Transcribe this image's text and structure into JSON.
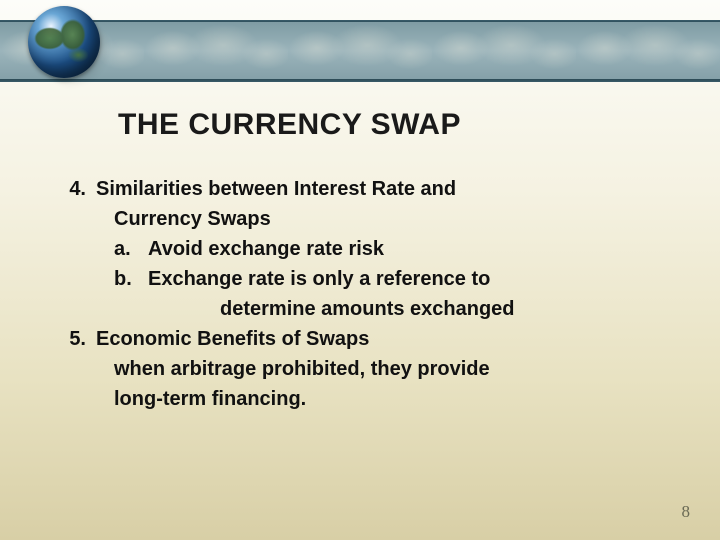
{
  "title": "THE CURRENCY SWAP",
  "items": [
    {
      "num": "4.",
      "text": "Similarities between Interest Rate and"
    },
    {
      "lvl1": "Currency Swaps"
    },
    {
      "let": "a.",
      "subtext": "Avoid exchange rate risk"
    },
    {
      "let": "b.",
      "subtext": "Exchange rate is only a reference to"
    },
    {
      "sub2": "determine amounts exchanged"
    },
    {
      "num": "5.",
      "text": "Economic Benefits of Swaps"
    },
    {
      "lvl1": "when arbitrage prohibited, they provide"
    },
    {
      "lvl1": "long-term financing."
    }
  ],
  "page_number": "8",
  "colors": {
    "title": "#1a1a1a",
    "body": "#111111",
    "band": "#3a5c6a",
    "bg_top": "#fdfdf9",
    "bg_bottom": "#d8cfa6"
  }
}
